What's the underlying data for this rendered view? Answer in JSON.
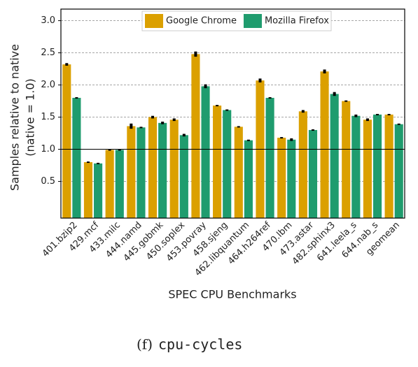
{
  "chart_data": {
    "type": "bar",
    "ylabel": [
      "Samples relative to native",
      "(native = 1.0)"
    ],
    "xlabel": "SPEC CPU Benchmarks",
    "caption_label": "(f)",
    "caption": "cpu-cycles",
    "categories": [
      "401.bzip2",
      "429.mcf",
      "433.milc",
      "444.namd",
      "445.gobmk",
      "450.soplex",
      "453.povray",
      "458.sjeng",
      "462.libquantum",
      "464.h264ref",
      "470.lbm",
      "473.astar",
      "482.sphinx3",
      "641.leela_s",
      "644.nab_s",
      "geomean"
    ],
    "series": [
      {
        "name": "Google Chrome",
        "color": "#dba000",
        "values": [
          2.32,
          0.8,
          0.99,
          1.36,
          1.5,
          1.46,
          2.48,
          1.68,
          1.35,
          2.07,
          1.18,
          1.59,
          2.21,
          1.75,
          1.46,
          1.54
        ],
        "errors": [
          0.02,
          0.01,
          0.01,
          0.04,
          0.02,
          0.02,
          0.04,
          0.01,
          0.01,
          0.03,
          0.01,
          0.02,
          0.03,
          0.01,
          0.02,
          0.01
        ]
      },
      {
        "name": "Mozilla Firefox",
        "color": "#1f9c6e",
        "values": [
          1.8,
          0.78,
          0.99,
          1.34,
          1.41,
          1.22,
          1.98,
          1.61,
          1.14,
          1.8,
          1.15,
          1.3,
          1.86,
          1.52,
          1.54,
          1.39
        ],
        "errors": [
          0.01,
          0.01,
          0.01,
          0.01,
          0.02,
          0.02,
          0.03,
          0.01,
          0.01,
          0.01,
          0.02,
          0.01,
          0.03,
          0.02,
          0.01,
          0.01
        ]
      }
    ],
    "reference_line": 1.0,
    "ylim": [
      -0.07,
      3.18
    ],
    "yticks": [
      {
        "value": 0.5,
        "label": "0.5"
      },
      {
        "value": 1,
        "label": "1.0"
      },
      {
        "value": 1.5,
        "label": "1.5"
      },
      {
        "value": 2,
        "label": "2.0"
      },
      {
        "value": 2.5,
        "label": "2.5"
      },
      {
        "value": 3,
        "label": "3.0"
      }
    ],
    "grid": true,
    "legend": "top"
  }
}
